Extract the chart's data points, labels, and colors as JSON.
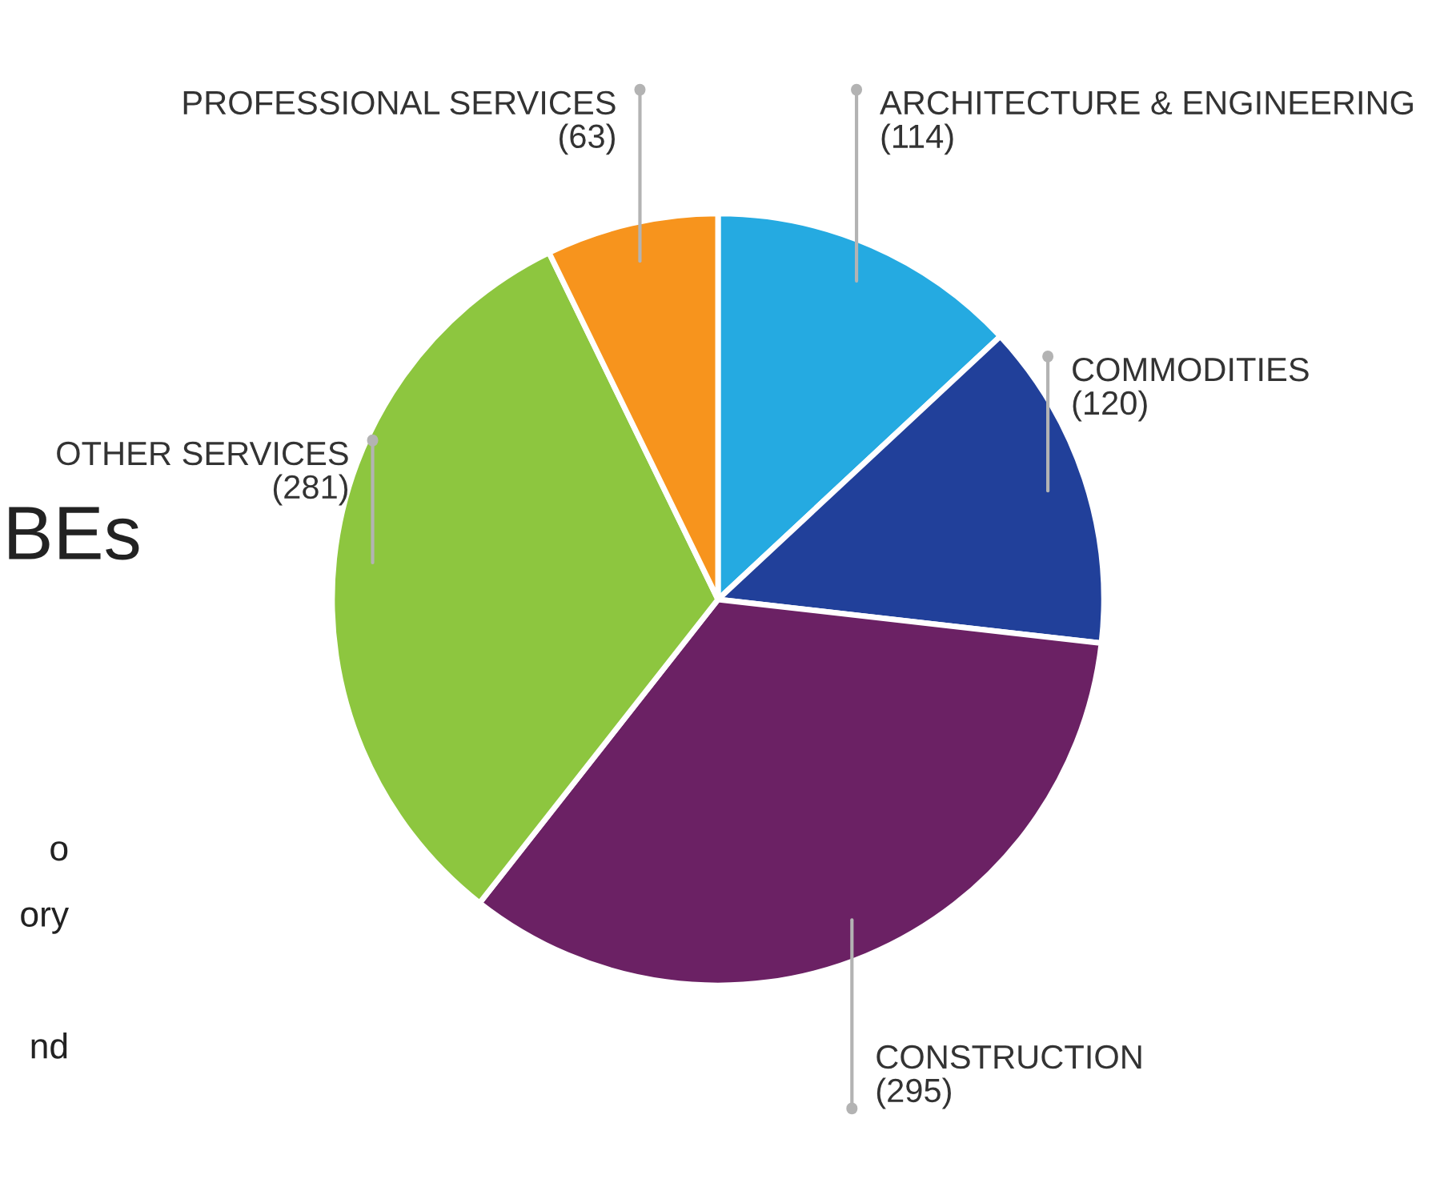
{
  "chart_data": {
    "type": "pie",
    "categories": [
      "ARCHITECTURE & ENGINEERING",
      "COMMODITIES",
      "CONSTRUCTION",
      "OTHER SERVICES",
      "PROFESSIONAL SERVICES"
    ],
    "values": [
      114,
      120,
      295,
      281,
      63
    ],
    "value_labels": [
      "(114)",
      "(120)",
      "(295)",
      "(281)",
      "(63)"
    ],
    "colors": [
      "#25aae1",
      "#21409a",
      "#6b2164",
      "#8dc63f",
      "#f7941d"
    ],
    "annotations": [
      "BEs",
      "o",
      "ory",
      "nd"
    ]
  }
}
